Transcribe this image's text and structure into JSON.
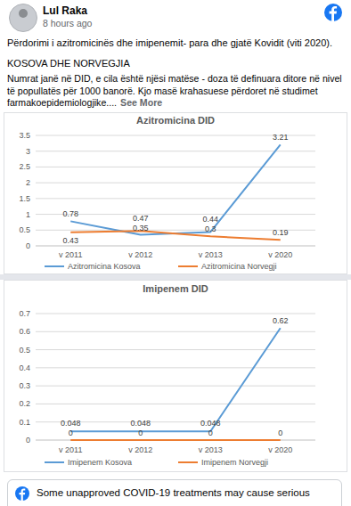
{
  "post": {
    "author": "Lul Raka",
    "time": "8 hours ago",
    "headline": "Përdorimi i azitromicinës dhe imipenemit- para dhe gjatë Kovidit (viti 2020).",
    "subtitle": "KOSOVA DHE NORVEGJIA",
    "body": "Numrat janë në DID, e cila është njësi matëse - doza të definuara ditore në nivel të popullatës për 1000 banorë. Kjo masë krahasuese përdoret në studimet farmakoepidemiologjike....",
    "see_more": "See More"
  },
  "notice": "Some unapproved COVID-19 treatments may cause serious",
  "chart_data": [
    {
      "type": "line",
      "title": "Azitromicina DID",
      "categories": [
        "v 2011",
        "v 2012",
        "v 2013",
        "v 2020"
      ],
      "series": [
        {
          "name": "Azitromicina Kosova",
          "color": "#5b9bd5",
          "values": [
            0.78,
            0.35,
            0.44,
            3.21
          ]
        },
        {
          "name": "Azitromicina Norvegji",
          "color": "#ed7d31",
          "values": [
            0.43,
            0.47,
            0.3,
            0.19
          ]
        }
      ],
      "ylim": [
        0,
        3.5
      ],
      "yticks": [
        0,
        0.5,
        1,
        1.5,
        2,
        2.5,
        3,
        3.5
      ],
      "grid": true,
      "data_labels": true,
      "legend": "bottom"
    },
    {
      "type": "line",
      "title": "Imipenem DID",
      "categories": [
        "v 2011",
        "v 2012",
        "v 2013",
        "v 2020"
      ],
      "series": [
        {
          "name": "Imipenem Kosova",
          "color": "#5b9bd5",
          "values": [
            0.048,
            0.048,
            0.048,
            0.62
          ]
        },
        {
          "name": "Imipenem Norvegji",
          "color": "#ed7d31",
          "values": [
            0,
            0,
            0,
            0
          ]
        }
      ],
      "ylim": [
        0,
        0.7
      ],
      "yticks": [
        0,
        0.1,
        0.2,
        0.3,
        0.4,
        0.5,
        0.6,
        0.7
      ],
      "grid": true,
      "data_labels": true,
      "legend": "bottom"
    }
  ]
}
